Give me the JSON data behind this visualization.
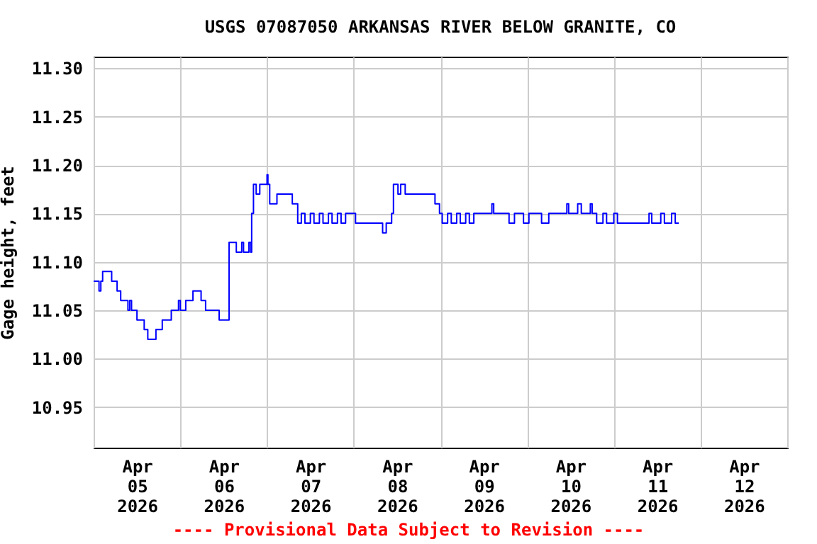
{
  "chart_data": {
    "type": "step",
    "title": "USGS 07087050 ARKANSAS RIVER BELOW GRANITE, CO",
    "ylabel": "Gage height, feet",
    "annotations": [
      "---- Provisional Data Subject to Revision ----"
    ],
    "xlim": [
      "2026-04-05T00:00",
      "2026-04-13T00:00"
    ],
    "xticks": [
      {
        "value": "2026-04-05T00:00",
        "label": null
      },
      {
        "value": "2026-04-05T12:00",
        "label": "Apr 05 2026"
      },
      {
        "value": "2026-04-06T00:00",
        "label": null
      },
      {
        "value": "2026-04-06T12:00",
        "label": "Apr 06 2026"
      },
      {
        "value": "2026-04-07T00:00",
        "label": null
      },
      {
        "value": "2026-04-07T12:00",
        "label": "Apr 07 2026"
      },
      {
        "value": "2026-04-08T00:00",
        "label": null
      },
      {
        "value": "2026-04-08T12:00",
        "label": "Apr 08 2026"
      },
      {
        "value": "2026-04-09T00:00",
        "label": null
      },
      {
        "value": "2026-04-09T12:00",
        "label": "Apr 09 2026"
      },
      {
        "value": "2026-04-10T00:00",
        "label": null
      },
      {
        "value": "2026-04-10T12:00",
        "label": "Apr 10 2026"
      },
      {
        "value": "2026-04-11T00:00",
        "label": null
      },
      {
        "value": "2026-04-11T12:00",
        "label": "Apr 11 2026"
      },
      {
        "value": "2026-04-12T00:00",
        "label": null
      },
      {
        "value": "2026-04-12T12:00",
        "label": "Apr 12 2026"
      },
      {
        "value": "2026-04-13T00:00",
        "label": null
      }
    ],
    "ylim": [
      10.908,
      11.312
    ],
    "yticks": [
      {
        "value": 10.95,
        "label": "10.95"
      },
      {
        "value": 11.0,
        "label": "11.00"
      },
      {
        "value": 11.05,
        "label": "11.05"
      },
      {
        "value": 11.1,
        "label": "11.10"
      },
      {
        "value": 11.15,
        "label": "11.15"
      },
      {
        "value": 11.2,
        "label": "11.20"
      },
      {
        "value": 11.25,
        "label": "11.25"
      },
      {
        "value": 11.3,
        "label": "11.30"
      }
    ],
    "grid": true,
    "line_style": "solid",
    "series": [
      {
        "color": "#0000ff",
        "x": [
          "2026-04-05T00:00",
          "2026-04-05T01:30",
          "2026-04-05T02:00",
          "2026-04-05T02:30",
          "2026-04-05T05:00",
          "2026-04-05T06:30",
          "2026-04-05T07:30",
          "2026-04-05T09:30",
          "2026-04-05T10:00",
          "2026-04-05T10:30",
          "2026-04-05T12:00",
          "2026-04-05T14:00",
          "2026-04-05T15:00",
          "2026-04-05T17:15",
          "2026-04-05T19:00",
          "2026-04-05T21:30",
          "2026-04-05T23:30",
          "2026-04-06T00:00",
          "2026-04-06T01:30",
          "2026-04-06T03:30",
          "2026-04-06T05:45",
          "2026-04-06T07:00",
          "2026-04-06T10:45",
          "2026-04-06T13:30",
          "2026-04-06T15:30",
          "2026-04-06T17:00",
          "2026-04-06T17:30",
          "2026-04-06T19:00",
          "2026-04-06T19:30",
          "2026-04-06T19:45",
          "2026-04-06T20:15",
          "2026-04-06T21:00",
          "2026-04-06T22:00",
          "2026-04-07T00:00",
          "2026-04-07T00:15",
          "2026-04-07T00:45",
          "2026-04-07T02:45",
          "2026-04-07T07:00",
          "2026-04-07T08:30",
          "2026-04-07T09:30",
          "2026-04-07T10:30",
          "2026-04-07T12:00",
          "2026-04-07T13:00",
          "2026-04-07T14:30",
          "2026-04-07T15:30",
          "2026-04-07T17:00",
          "2026-04-07T18:00",
          "2026-04-07T19:30",
          "2026-04-07T20:30",
          "2026-04-07T21:45",
          "2026-04-08T00:30",
          "2026-04-08T08:00",
          "2026-04-08T09:00",
          "2026-04-08T10:30",
          "2026-04-08T11:00",
          "2026-04-08T12:15",
          "2026-04-08T13:00",
          "2026-04-08T14:15",
          "2026-04-08T22:30",
          "2026-04-08T23:45",
          "2026-04-09T00:30",
          "2026-04-09T02:00",
          "2026-04-09T03:00",
          "2026-04-09T04:30",
          "2026-04-09T05:30",
          "2026-04-09T07:00",
          "2026-04-09T08:00",
          "2026-04-09T09:15",
          "2026-04-09T14:15",
          "2026-04-09T14:45",
          "2026-04-09T19:00",
          "2026-04-09T20:30",
          "2026-04-09T23:00",
          "2026-04-10T00:30",
          "2026-04-10T04:00",
          "2026-04-10T06:00",
          "2026-04-10T11:00",
          "2026-04-10T11:30",
          "2026-04-10T14:00",
          "2026-04-10T15:00",
          "2026-04-10T17:30",
          "2026-04-10T18:00",
          "2026-04-10T19:15",
          "2026-04-10T21:00",
          "2026-04-10T22:00",
          "2026-04-11T00:00",
          "2026-04-11T01:00",
          "2026-04-11T09:45",
          "2026-04-11T10:30",
          "2026-04-11T13:00",
          "2026-04-11T14:00",
          "2026-04-11T16:00",
          "2026-04-11T17:00",
          "2026-04-11T18:00"
        ],
        "values": [
          11.08,
          11.07,
          11.08,
          11.09,
          11.08,
          11.07,
          11.06,
          11.05,
          11.06,
          11.05,
          11.04,
          11.03,
          11.02,
          11.03,
          11.04,
          11.05,
          11.06,
          11.05,
          11.06,
          11.07,
          11.06,
          11.05,
          11.04,
          11.12,
          11.11,
          11.12,
          11.11,
          11.12,
          11.11,
          11.15,
          11.18,
          11.17,
          11.18,
          11.19,
          11.18,
          11.16,
          11.17,
          11.16,
          11.14,
          11.15,
          11.14,
          11.15,
          11.14,
          11.15,
          11.14,
          11.15,
          11.14,
          11.15,
          11.14,
          11.15,
          11.14,
          11.13,
          11.14,
          11.15,
          11.18,
          11.17,
          11.18,
          11.17,
          11.16,
          11.15,
          11.14,
          11.15,
          11.14,
          11.15,
          11.14,
          11.15,
          11.14,
          11.15,
          11.16,
          11.15,
          11.14,
          11.15,
          11.14,
          11.15,
          11.14,
          11.15,
          11.16,
          11.15,
          11.16,
          11.15,
          11.16,
          11.15,
          11.14,
          11.15,
          11.14,
          11.15,
          11.14,
          11.15,
          11.14,
          11.15,
          11.14,
          11.15,
          11.14,
          11.14
        ]
      }
    ]
  }
}
